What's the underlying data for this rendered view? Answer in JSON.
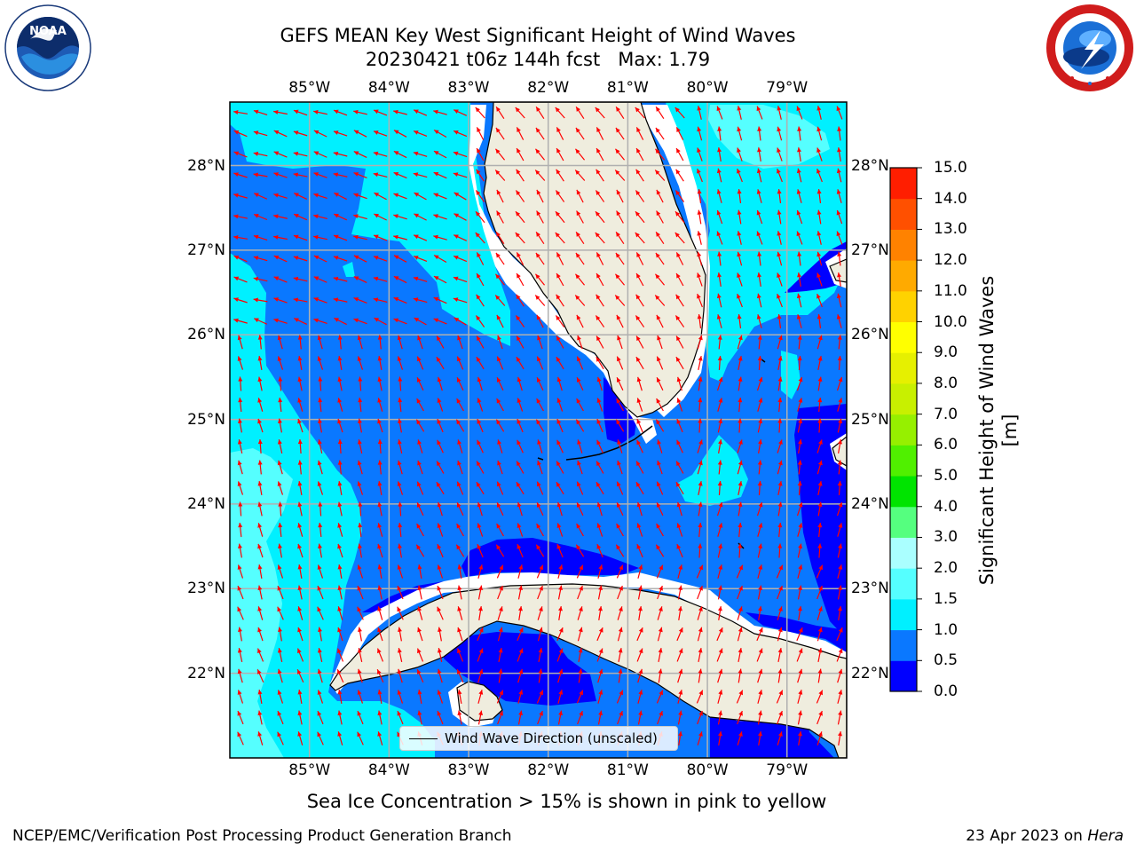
{
  "title": {
    "line1": "GEFS MEAN Key West Significant Height of Wind Waves",
    "line2": "20230421 t06z 144h fcst   Max: 1.79"
  },
  "map": {
    "lon_labels": [
      "85°W",
      "84°W",
      "83°W",
      "82°W",
      "81°W",
      "80°W",
      "79°W"
    ],
    "lat_labels": [
      "28°N",
      "27°N",
      "26°N",
      "25°N",
      "24°N",
      "23°N",
      "22°N"
    ],
    "lon_range": [
      -86.0,
      -78.25
    ],
    "lat_range": [
      21.0,
      28.75
    ],
    "legend_label": "Wind Wave Direction (unscaled)",
    "arrow_color": "#ff0000",
    "land_color": "#efedde",
    "grid_color": "#b0b0b0"
  },
  "colorbar": {
    "label": "Significant Height of Wind Waves [m]",
    "ticks": [
      "0.0",
      "0.5",
      "1.0",
      "1.5",
      "2.0",
      "3.0",
      "4.0",
      "5.0",
      "6.0",
      "7.0",
      "8.0",
      "9.0",
      "10.0",
      "11.0",
      "12.0",
      "13.0",
      "14.0",
      "15.0"
    ],
    "colors": [
      "#0000ff",
      "#0a78ff",
      "#00f0ff",
      "#55ffff",
      "#aaffff",
      "#55ff7f",
      "#00e400",
      "#50f000",
      "#96f000",
      "#c8f000",
      "#e6f000",
      "#ffff00",
      "#ffd200",
      "#ffaa00",
      "#ff8200",
      "#ff5000",
      "#ff1e00"
    ]
  },
  "note": "Sea Ice Concentration > 15% is shown in pink to yellow",
  "footer": {
    "left": "NCEP/EMC/Verification Post Processing Product Generation Branch",
    "right_date": "23 Apr 2023 on ",
    "right_machine": "Hera"
  },
  "logos": {
    "noaa_text": "NOAA",
    "noaa_ring": "NATIONAL OCEANIC AND ATMOSPHERIC ADMINISTRATION",
    "nws_ring": "NATIONAL WEATHER SERVICE"
  }
}
